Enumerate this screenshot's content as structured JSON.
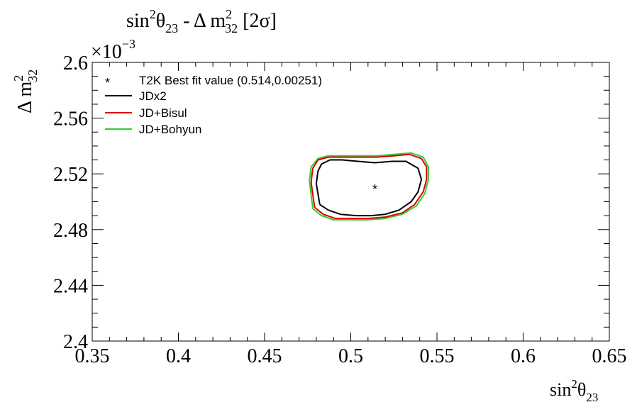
{
  "chart_data": {
    "type": "line",
    "title": {
      "base": "sin",
      "sup1": "2",
      "theta": "θ",
      "sub1": "23",
      "mid": " - Δ m",
      "sup2": "2",
      "sub2": "32",
      "tail": " [2σ]"
    },
    "xlabel": {
      "base": "sin",
      "sup": "2",
      "theta": "θ",
      "sub": "23"
    },
    "ylabel": {
      "base": "Δ m",
      "sup": "2",
      "sub": "32"
    },
    "xlim": [
      0.35,
      0.65
    ],
    "ylim": [
      0.0024,
      0.0026
    ],
    "y_multiplier": {
      "base": "×10",
      "exp": "−3"
    },
    "x_ticks": [
      0.35,
      0.4,
      0.45,
      0.5,
      0.55,
      0.6,
      0.65
    ],
    "x_tick_labels": [
      "0.35",
      "0.4",
      "0.45",
      "0.5",
      "0.55",
      "0.6",
      "0.65"
    ],
    "y_ticks": [
      0.0024,
      0.00244,
      0.00248,
      0.00252,
      0.00256,
      0.0026
    ],
    "y_tick_labels": [
      "2.4",
      "2.44",
      "2.48",
      "2.52",
      "2.56",
      "2.6"
    ],
    "best_fit": {
      "label": "T2K Best fit value (0.514,0.00251)",
      "x": 0.514,
      "y": 0.00251,
      "marker": "*",
      "color": "#000000"
    },
    "series": [
      {
        "name": "JD+Bohyun",
        "color": "#33cc33",
        "x": [
          0.478,
          0.483,
          0.49,
          0.5,
          0.51,
          0.52,
          0.53,
          0.538,
          0.543,
          0.545,
          0.545,
          0.542,
          0.535,
          0.525,
          0.515,
          0.505,
          0.495,
          0.487,
          0.481,
          0.477,
          0.476,
          0.478
        ],
        "y": [
          0.002495,
          0.00249,
          0.002487,
          0.002487,
          0.002487,
          0.002488,
          0.002491,
          0.002497,
          0.002506,
          0.002516,
          0.002525,
          0.002532,
          0.002535,
          0.002534,
          0.002533,
          0.002533,
          0.002533,
          0.002533,
          0.002531,
          0.002525,
          0.002515,
          0.002495
        ]
      },
      {
        "name": "JD+Bisul",
        "color": "#dd0000",
        "x": [
          0.479,
          0.484,
          0.491,
          0.5,
          0.51,
          0.52,
          0.53,
          0.537,
          0.542,
          0.544,
          0.544,
          0.541,
          0.534,
          0.525,
          0.515,
          0.505,
          0.495,
          0.487,
          0.481,
          0.478,
          0.477,
          0.479
        ],
        "y": [
          0.002496,
          0.002491,
          0.002488,
          0.002488,
          0.002488,
          0.002489,
          0.002492,
          0.002498,
          0.002507,
          0.002516,
          0.002525,
          0.002531,
          0.002534,
          0.002533,
          0.002532,
          0.002532,
          0.002532,
          0.002532,
          0.00253,
          0.002524,
          0.002514,
          0.002496
        ]
      },
      {
        "name": "JDx2",
        "color": "#000000",
        "x": [
          0.482,
          0.487,
          0.494,
          0.503,
          0.512,
          0.52,
          0.528,
          0.535,
          0.539,
          0.541,
          0.539,
          0.532,
          0.524,
          0.514,
          0.504,
          0.495,
          0.488,
          0.483,
          0.481,
          0.48,
          0.482
        ],
        "y": [
          0.002498,
          0.002494,
          0.002491,
          0.00249,
          0.00249,
          0.002491,
          0.002494,
          0.0025,
          0.002507,
          0.002516,
          0.002524,
          0.002529,
          0.002529,
          0.002528,
          0.002529,
          0.00253,
          0.00253,
          0.002527,
          0.002522,
          0.002513,
          0.002498
        ]
      }
    ],
    "legend": {
      "placement": "top-left",
      "entries": [
        "JDx2",
        "JD+Bisul",
        "JD+Bohyun"
      ]
    }
  }
}
